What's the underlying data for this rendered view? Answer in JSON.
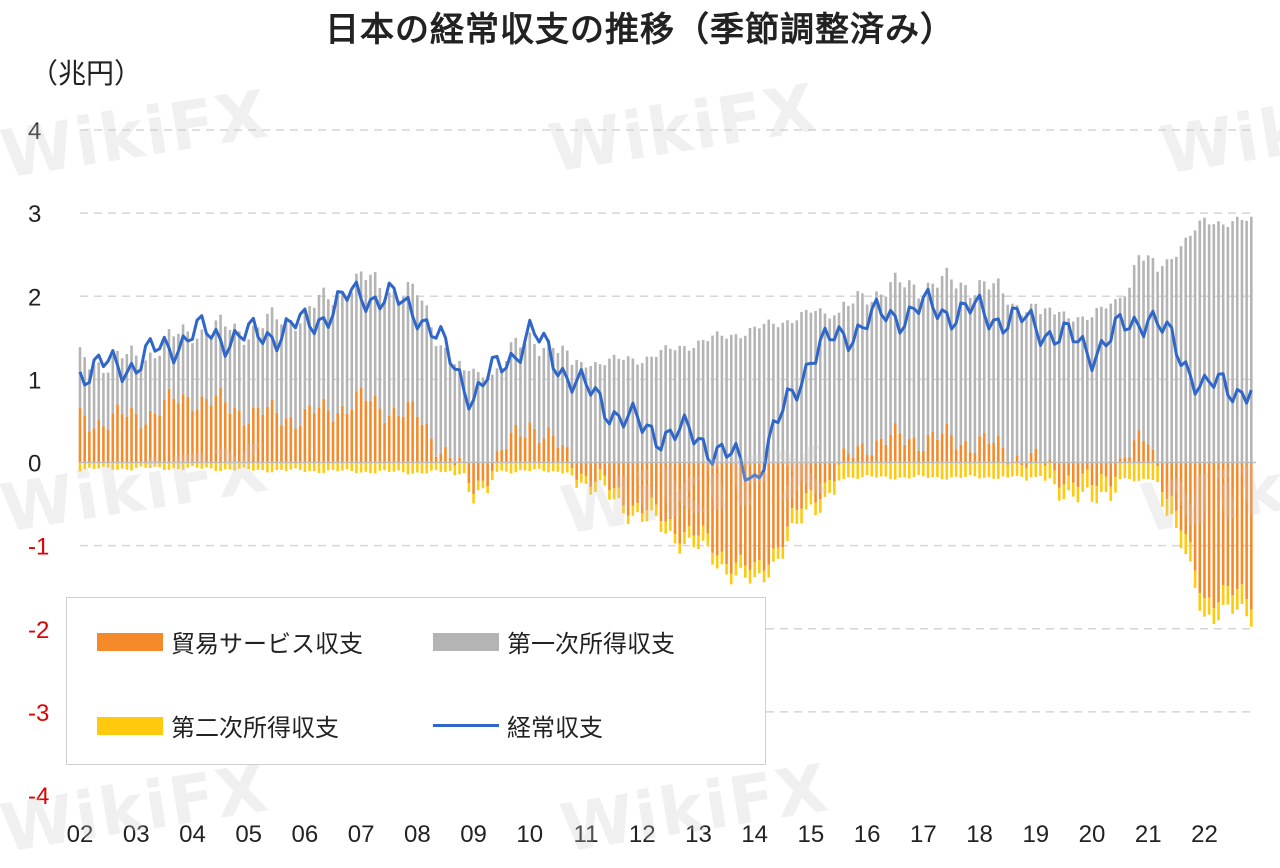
{
  "title": "日本の経常収支の推移（季節調整済み）",
  "unit_label": "（兆円）",
  "watermark": "WikiFX",
  "colors": {
    "trade_services": "#f58a2b",
    "primary_income": "#b4b4b4",
    "secondary_income": "#ffc90e",
    "current_account": "#2f66c9",
    "negative_tick": "#e00000",
    "grid": "#d6d6d6"
  },
  "legend": {
    "trade_services": "貿易サービス収支",
    "primary_income": "第一次所得収支",
    "secondary_income": "第二次所得収支",
    "current_account": "経常収支"
  },
  "chart_data": {
    "type": "bar+line",
    "title": "日本の経常収支の推移（季節調整済み）",
    "ylabel": "（兆円）",
    "ylim": [
      -4,
      4
    ],
    "yticks": [
      "4",
      "3",
      "2",
      "1",
      "0",
      "-1",
      "-2",
      "-3",
      "-4"
    ],
    "x_labels": [
      "02",
      "03",
      "04",
      "05",
      "06",
      "07",
      "08",
      "09",
      "10",
      "11",
      "12",
      "13",
      "14",
      "15",
      "16",
      "17",
      "18",
      "19",
      "20",
      "21",
      "22"
    ],
    "frequency": "monthly",
    "legend_placement": "bottom-left",
    "gridlines": true,
    "series": [
      {
        "name": "貿易サービス収支",
        "type": "bar",
        "annual_approx": [
          0.5,
          0.55,
          0.8,
          0.6,
          0.55,
          0.75,
          0.55,
          -0.3,
          0.5,
          -0.15,
          -0.55,
          -0.9,
          -1.35,
          -0.4,
          0.25,
          0.3,
          0.25,
          0.0,
          -0.3,
          0.3,
          -1.6
        ]
      },
      {
        "name": "第一次所得収支",
        "type": "bar",
        "annual_approx": [
          0.7,
          0.7,
          0.8,
          1.0,
          1.25,
          1.45,
          1.45,
          1.05,
          1.05,
          1.2,
          1.25,
          1.45,
          1.6,
          1.8,
          1.8,
          1.85,
          1.9,
          1.8,
          1.75,
          2.2,
          2.9
        ]
      },
      {
        "name": "第二次所得収支",
        "type": "bar",
        "annual_approx": [
          -0.08,
          -0.07,
          -0.07,
          -0.09,
          -0.1,
          -0.11,
          -0.12,
          -0.11,
          -0.1,
          -0.11,
          -0.12,
          -0.15,
          -0.15,
          -0.17,
          -0.18,
          -0.18,
          -0.18,
          -0.16,
          -0.2,
          -0.2,
          -0.22
        ]
      },
      {
        "name": "経常収支",
        "type": "line",
        "annual_approx": [
          1.1,
          1.2,
          1.55,
          1.5,
          1.65,
          2.05,
          1.85,
          0.8,
          1.55,
          0.85,
          0.4,
          0.3,
          -0.15,
          1.3,
          1.7,
          1.85,
          1.8,
          1.65,
          1.35,
          1.8,
          0.9
        ]
      }
    ]
  }
}
